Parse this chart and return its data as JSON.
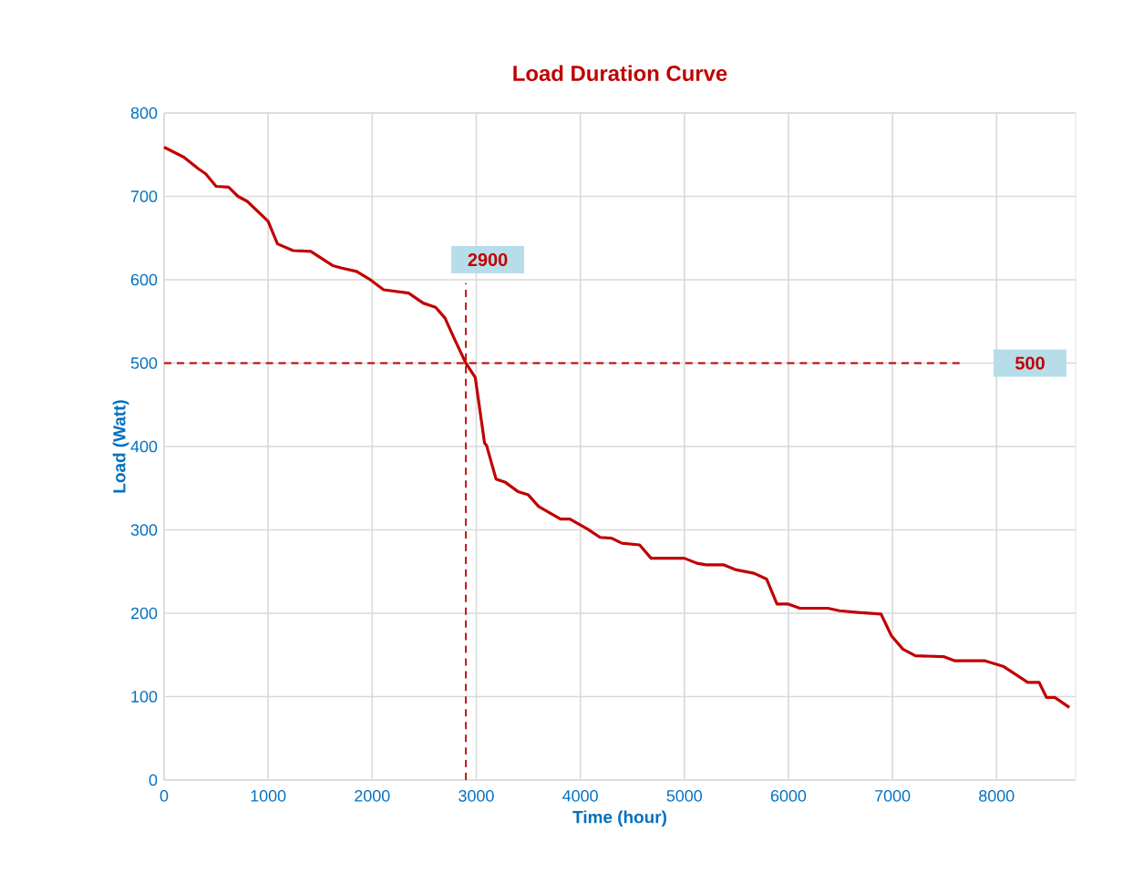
{
  "chart_data": {
    "type": "line",
    "title": "Load Duration Curve",
    "xlabel": "Time (hour)",
    "ylabel": "Load (Watt)",
    "x": [
      0,
      190,
      330,
      400,
      500,
      620,
      710,
      800,
      1000,
      1090,
      1240,
      1410,
      1620,
      1710,
      1850,
      1970,
      2110,
      2350,
      2490,
      2610,
      2700,
      2790,
      2900,
      2990,
      3080,
      3100,
      3190,
      3280,
      3400,
      3500,
      3600,
      3810,
      3900,
      4070,
      4190,
      4300,
      4400,
      4570,
      4680,
      5000,
      5120,
      5210,
      5380,
      5500,
      5670,
      5790,
      5890,
      6000,
      6110,
      6380,
      6490,
      6670,
      6890,
      6990,
      7100,
      7220,
      7490,
      7600,
      7890,
      8070,
      8240,
      8300,
      8410,
      8480,
      8560,
      8700
    ],
    "values": [
      759,
      747,
      733,
      727,
      712,
      711,
      700,
      694,
      670,
      643,
      635,
      634,
      617,
      614,
      610,
      601,
      588,
      584,
      572,
      567,
      554,
      529,
      500,
      483,
      404,
      401,
      361,
      357,
      346,
      342,
      328,
      313,
      313,
      301,
      291,
      290,
      284,
      282,
      266,
      266,
      260,
      258,
      258,
      252,
      248,
      241,
      211,
      211,
      206,
      206,
      203,
      201,
      199,
      173,
      157,
      149,
      148,
      143,
      143,
      136,
      122,
      117,
      117,
      99,
      99,
      87
    ],
    "color": "#c00000",
    "xlim": [
      0,
      8760
    ],
    "ylim": [
      0,
      800
    ],
    "xticks": [
      0,
      1000,
      2000,
      3000,
      4000,
      5000,
      6000,
      7000,
      8000
    ],
    "yticks": [
      0,
      100,
      200,
      300,
      400,
      500,
      600,
      700,
      800
    ],
    "grid": true,
    "ref_lines": [
      {
        "axis": "x",
        "value": 2900,
        "label": "2900",
        "color": "#c00000",
        "line_style": "dashed"
      },
      {
        "axis": "y",
        "value": 500,
        "label": "500",
        "color": "#c00000",
        "line_style": "dashed"
      }
    ]
  }
}
